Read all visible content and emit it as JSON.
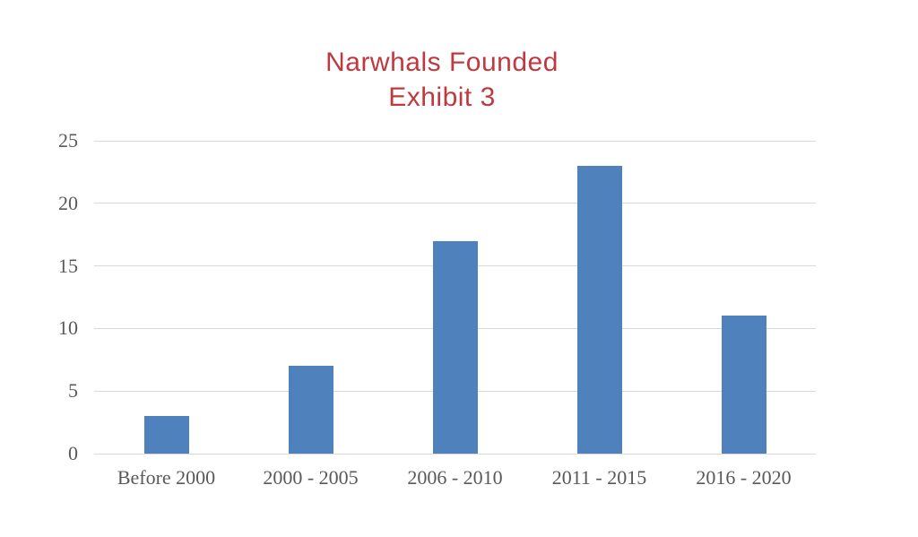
{
  "chart_data": {
    "type": "bar",
    "title": "Narwhals Founded",
    "subtitle": "Exhibit 3",
    "categories": [
      "Before 2000",
      "2000 - 2005",
      "2006 - 2010",
      "2011 - 2015",
      "2016 - 2020"
    ],
    "values": [
      3,
      7,
      17,
      23,
      11
    ],
    "xlabel": "",
    "ylabel": "",
    "ylim": [
      0,
      25
    ],
    "yticks": [
      0,
      5,
      10,
      15,
      20,
      25
    ],
    "grid": true,
    "legend": false,
    "colors": {
      "title": "#c0393f",
      "bar": "#4f81bd",
      "axis_text": "#595959",
      "gridline": "#d9d9d9"
    }
  }
}
